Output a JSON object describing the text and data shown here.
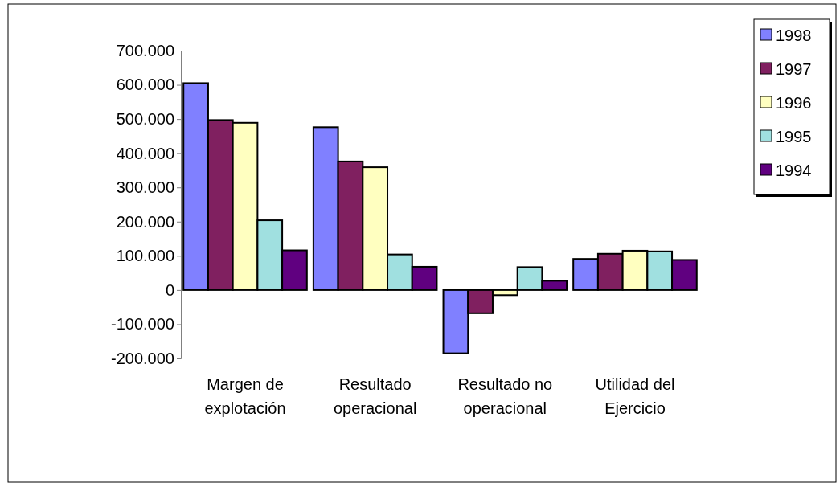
{
  "chart_data": {
    "type": "bar",
    "categories": [
      "Margen de explotación",
      "Resultado operacional",
      "Resultado no operacional",
      "Utilidad del Ejercicio"
    ],
    "series": [
      {
        "name": "1998",
        "color": "#8080ff",
        "values": [
          605000,
          476000,
          -185000,
          91000
        ]
      },
      {
        "name": "1997",
        "color": "#802060",
        "values": [
          497000,
          376000,
          -68000,
          106000
        ]
      },
      {
        "name": "1996",
        "color": "#ffffc0",
        "values": [
          489000,
          359000,
          -15000,
          115000
        ]
      },
      {
        "name": "1995",
        "color": "#a0e0e0",
        "values": [
          204000,
          104000,
          67000,
          113000
        ]
      },
      {
        "name": "1994",
        "color": "#600080",
        "values": [
          116000,
          68000,
          27000,
          88000
        ]
      }
    ],
    "ylim": [
      -200000,
      700000
    ],
    "yticks": [
      {
        "value": -200000,
        "label": "-200.000"
      },
      {
        "value": -100000,
        "label": "-100.000"
      },
      0,
      {
        "value": 100000,
        "label": "100.000"
      },
      {
        "value": 200000,
        "label": "200.000"
      },
      {
        "value": 300000,
        "label": "300.000"
      },
      {
        "value": 400000,
        "label": "400.000"
      },
      {
        "value": 500000,
        "label": "500.000"
      },
      {
        "value": 600000,
        "label": "600.000"
      },
      {
        "value": 700000,
        "label": "700.000"
      }
    ],
    "grid": false,
    "legend": "top right"
  }
}
